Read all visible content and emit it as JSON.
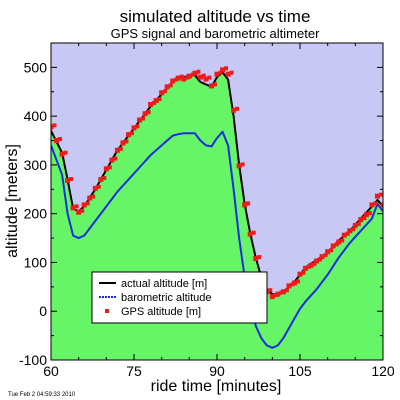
{
  "chart_data": {
    "type": "line",
    "title": "simulated altitude vs time",
    "subtitle": "GPS signal and barometric altimeter",
    "xlabel": "ride time [minutes]",
    "ylabel": "altitude [meters]",
    "xlim": [
      60,
      120
    ],
    "ylim": [
      -100,
      550
    ],
    "xticks": [
      60,
      75,
      90,
      105,
      120
    ],
    "yticks": [
      -100,
      0,
      100,
      200,
      300,
      400,
      500
    ],
    "grid": false,
    "legend_position": "bottom-left",
    "colors": {
      "sky": "#c8c8f5",
      "ground": "#66f566",
      "actual": "#000000",
      "barometric": "#1c2de0",
      "gps": "#ee1b1b"
    },
    "series": [
      {
        "name": "actual altitude [m]",
        "style": "line",
        "x": [
          60,
          62,
          63,
          64,
          65,
          66,
          68,
          70,
          72,
          74,
          76,
          78,
          80,
          82,
          83,
          84,
          85,
          86,
          87,
          88,
          89,
          90,
          91,
          92,
          93,
          94,
          95,
          96,
          97,
          98,
          99,
          100,
          101,
          102,
          103,
          104,
          105,
          106,
          108,
          110,
          112,
          114,
          116,
          118,
          119,
          120
        ],
        "y": [
          370,
          325,
          270,
          210,
          205,
          215,
          250,
          290,
          330,
          360,
          390,
          420,
          445,
          470,
          477,
          480,
          484,
          484,
          470,
          465,
          460,
          480,
          490,
          475,
          400,
          300,
          220,
          160,
          110,
          70,
          45,
          35,
          35,
          40,
          50,
          60,
          75,
          90,
          105,
          120,
          145,
          165,
          190,
          215,
          228,
          215
        ]
      },
      {
        "name": "barometric altitude",
        "style": "line",
        "x": [
          60,
          62,
          63,
          64,
          65,
          66,
          68,
          70,
          72,
          74,
          76,
          78,
          80,
          82,
          83,
          84,
          85,
          86,
          87,
          88,
          89,
          90,
          91,
          92,
          93,
          94,
          95,
          96,
          97,
          98,
          99,
          100,
          101,
          102,
          103,
          104,
          105,
          106,
          108,
          110,
          112,
          114,
          116,
          118,
          119,
          120
        ],
        "y": [
          340,
          280,
          200,
          155,
          150,
          155,
          185,
          215,
          245,
          270,
          295,
          320,
          340,
          360,
          363,
          365,
          365,
          365,
          350,
          340,
          338,
          355,
          368,
          340,
          250,
          150,
          70,
          20,
          -30,
          -55,
          -70,
          -75,
          -70,
          -55,
          -35,
          -15,
          5,
          20,
          45,
          75,
          110,
          140,
          165,
          190,
          220,
          205
        ]
      },
      {
        "name": "GPS altitude [m]",
        "style": "markers",
        "x": [
          60,
          61,
          62,
          63,
          64,
          65,
          66,
          67,
          68,
          69,
          70,
          71,
          72,
          73,
          74,
          75,
          76,
          77,
          78,
          79,
          80,
          81,
          82,
          83,
          84,
          85,
          86,
          87,
          88,
          89,
          90,
          91,
          92,
          93,
          94,
          95,
          96,
          97,
          98,
          99,
          100,
          101,
          102,
          103,
          104,
          105,
          106,
          107,
          108,
          109,
          110,
          111,
          112,
          113,
          114,
          115,
          116,
          117,
          118,
          119,
          120
        ],
        "y": [
          378,
          350,
          322,
          268,
          212,
          203,
          218,
          232,
          252,
          270,
          292,
          310,
          330,
          345,
          362,
          376,
          392,
          405,
          424,
          432,
          448,
          460,
          472,
          478,
          476,
          482,
          488,
          480,
          476,
          462,
          486,
          495,
          486,
          412,
          298,
          218,
          158,
          108,
          68,
          40,
          30,
          35,
          40,
          52,
          58,
          76,
          88,
          94,
          103,
          112,
          122,
          134,
          142,
          156,
          165,
          176,
          188,
          198,
          218,
          236,
          218
        ]
      }
    ]
  },
  "timestamp": "Tue Feb  2 04:59:33 2010"
}
